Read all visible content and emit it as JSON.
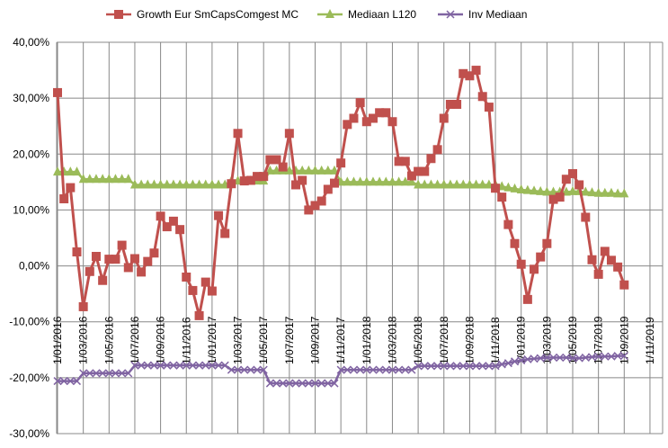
{
  "chart_data": {
    "type": "line",
    "title": "",
    "xlabel": "",
    "ylabel": "",
    "ylim": [
      -30,
      40
    ],
    "y_ticks": [
      "40,00%",
      "30,00%",
      "20,00%",
      "10,00%",
      "0,00%",
      "-10,00%",
      "-20,00%",
      "-30,00%"
    ],
    "x_ticks": [
      "1/01/2016",
      "1/03/2016",
      "1/05/2016",
      "1/07/2016",
      "1/09/2016",
      "1/11/2016",
      "1/01/2017",
      "1/03/2017",
      "1/05/2017",
      "1/07/2017",
      "1/09/2017",
      "1/11/2017",
      "1/01/2018",
      "1/03/2018",
      "1/05/2018",
      "1/07/2018",
      "1/09/2018",
      "1/11/2018",
      "1/01/2019",
      "1/03/2019",
      "1/05/2019",
      "1/07/2019",
      "1/09/2019",
      "1/11/2019"
    ],
    "grid": true,
    "legend_position": "top",
    "series": [
      {
        "name": "Growth Eur SmCapsComgest MC",
        "color": "#C0504D",
        "marker": "square",
        "values": [
          31,
          12,
          14,
          2.5,
          -7.3,
          -1,
          1.7,
          -2.6,
          1.2,
          1.2,
          3.7,
          -0.3,
          1.3,
          -1.1,
          0.8,
          2.3,
          8.9,
          7,
          8,
          6.5,
          -2,
          -4.4,
          -8.9,
          -2.9,
          -4.5,
          9,
          5.8,
          14.7,
          23.7,
          15.2,
          15.3,
          16,
          16,
          19,
          19,
          17.7,
          23.7,
          14.5,
          15.3,
          10,
          10.8,
          11.6,
          13.7,
          14.8,
          18.4,
          25.3,
          26.4,
          29.2,
          25.8,
          26.4,
          27.4,
          27.4,
          25.8,
          18.7,
          18.7,
          16.1,
          16.9,
          16.9,
          19.2,
          20.8,
          26.4,
          28.9,
          28.9,
          34.4,
          34,
          35,
          30.3,
          28.4,
          13.9,
          12.3,
          7.4,
          4,
          0.3,
          -6,
          -0.6,
          1.6,
          4,
          11.9,
          12.3,
          15.5,
          16.5,
          14.5,
          8.7,
          1.1,
          -1.5,
          2.6,
          1,
          -0.2,
          -3.4
        ]
      },
      {
        "name": "Mediaan L120",
        "color": "#9BBB59",
        "marker": "triangle",
        "values": [
          16.8,
          16.8,
          16.8,
          16.8,
          15.5,
          15.5,
          15.5,
          15.5,
          15.5,
          15.5,
          15.5,
          15.5,
          14.5,
          14.5,
          14.5,
          14.5,
          14.5,
          14.5,
          14.5,
          14.5,
          14.5,
          14.5,
          14.5,
          14.5,
          14.5,
          14.5,
          14.5,
          15.2,
          15.2,
          15.2,
          15.2,
          15.2,
          15.2,
          17,
          17,
          17,
          17,
          17,
          17,
          17,
          17,
          17,
          17,
          17,
          15,
          15,
          15,
          15,
          15,
          15,
          15,
          15,
          15,
          15,
          15,
          15,
          14.5,
          14.5,
          14.5,
          14.5,
          14.5,
          14.5,
          14.5,
          14.5,
          14.5,
          14.5,
          14.5,
          14.5,
          14.5,
          14.2,
          14,
          13.8,
          13.6,
          13.5,
          13.4,
          13.3,
          13.2,
          13.2,
          13.2,
          13.2,
          13.3,
          13.3,
          13.2,
          13.1,
          13,
          13,
          13,
          12.9,
          12.9
        ]
      },
      {
        "name": "Inv Mediaan",
        "color": "#8064A2",
        "marker": "x",
        "values": [
          -20.6,
          -20.6,
          -20.6,
          -20.6,
          -19.2,
          -19.2,
          -19.2,
          -19.2,
          -19.2,
          -19.2,
          -19.2,
          -19.2,
          -17.8,
          -17.8,
          -17.8,
          -17.8,
          -17.8,
          -17.8,
          -17.8,
          -17.8,
          -17.8,
          -17.8,
          -17.8,
          -17.8,
          -17.8,
          -17.8,
          -17.8,
          -18.6,
          -18.6,
          -18.6,
          -18.6,
          -18.6,
          -18.6,
          -21,
          -21,
          -21,
          -21,
          -21,
          -21,
          -21,
          -21,
          -21,
          -21,
          -21,
          -18.6,
          -18.6,
          -18.6,
          -18.6,
          -18.6,
          -18.6,
          -18.6,
          -18.6,
          -18.6,
          -18.6,
          -18.6,
          -18.6,
          -17.9,
          -17.9,
          -17.9,
          -17.9,
          -17.9,
          -17.9,
          -17.9,
          -17.9,
          -17.9,
          -17.9,
          -17.9,
          -17.9,
          -17.9,
          -17.6,
          -17.4,
          -17.1,
          -16.9,
          -16.7,
          -16.6,
          -16.5,
          -16.4,
          -16.4,
          -16.4,
          -16.4,
          -16.5,
          -16.5,
          -16.4,
          -16.3,
          -16.2,
          -16.2,
          -16.2,
          -16.1,
          -16.1
        ]
      }
    ]
  }
}
